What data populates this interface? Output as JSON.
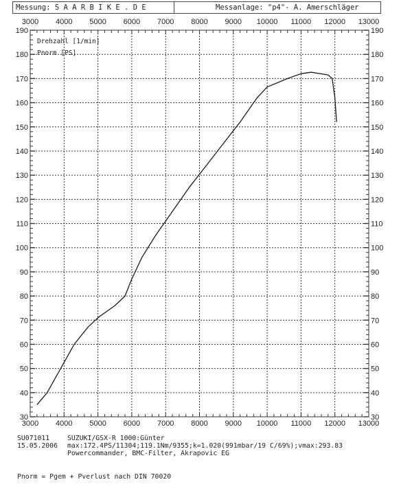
{
  "header": {
    "left_label": "Messung:",
    "left_value": "S A A R B I K E . D E",
    "right_label": "Messanlage:",
    "right_value": "\"p4\"- A. Amerschläger"
  },
  "legend": {
    "line1": "Drehzahl [1/min]",
    "line2": "Pnorm [PS]"
  },
  "footer": {
    "id": "SU071011",
    "date": "15.05.2006",
    "vehicle": "SUZUKI/GSX-R 1000:Günter",
    "max_line": "max:172.4PS/11304;119.1Nm/9355;k=1.020(991mbar/19 C/69%);vmax:293.83",
    "mods": "Powercommander, BMC-Filter, Akrapovic EG",
    "formula": "Pnorm = Pgem + Pverlust nach DIN 70020"
  },
  "chart_data": {
    "type": "line",
    "title": "",
    "xlabel": "Drehzahl [1/min]",
    "ylabel": "Pnorm [PS]",
    "xlim": [
      3000,
      13000
    ],
    "ylim": [
      30,
      190
    ],
    "x_ticks": [
      3000,
      4000,
      5000,
      6000,
      7000,
      8000,
      9000,
      10000,
      11000,
      12000,
      13000
    ],
    "y_ticks": [
      30,
      40,
      50,
      60,
      70,
      80,
      90,
      100,
      110,
      120,
      130,
      140,
      150,
      160,
      170,
      180,
      190
    ],
    "grid": true,
    "legend_position": "top-left",
    "series": [
      {
        "name": "Pnorm [PS]",
        "color": "#1a1a1a",
        "x": [
          3200,
          3500,
          3900,
          4300,
          4700,
          5000,
          5500,
          5800,
          6000,
          6300,
          6700,
          7200,
          7700,
          8200,
          8700,
          9200,
          9700,
          10000,
          10600,
          11000,
          11300,
          11800,
          11920,
          12000,
          12050
        ],
        "y": [
          35,
          40,
          50,
          60,
          67,
          71,
          76,
          80,
          87,
          96,
          105,
          115,
          125,
          134,
          143,
          152,
          162,
          166.5,
          170,
          172,
          172.6,
          171.5,
          170,
          162,
          152
        ]
      }
    ],
    "annotations": [
      "max:172.4PS/11304"
    ]
  },
  "colors": {
    "line": "#1a1a1a",
    "grid": "#333333",
    "background": "#ffffff"
  }
}
